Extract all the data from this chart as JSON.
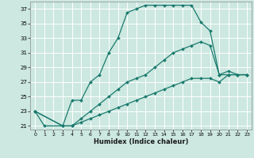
{
  "xlabel": "Humidex (Indice chaleur)",
  "background_color": "#cce8e0",
  "grid_color": "#ffffff",
  "line_color": "#1a7a6e",
  "xlim": [
    -0.5,
    23.5
  ],
  "ylim": [
    20.5,
    38.0
  ],
  "yticks": [
    21,
    23,
    25,
    27,
    29,
    31,
    33,
    35,
    37
  ],
  "xticks": [
    0,
    1,
    2,
    3,
    4,
    5,
    6,
    7,
    8,
    9,
    10,
    11,
    12,
    13,
    14,
    15,
    16,
    17,
    18,
    19,
    20,
    21,
    22,
    23
  ],
  "line1_x": [
    0,
    1,
    3,
    4,
    5,
    6,
    7,
    8,
    9,
    10,
    11,
    12,
    13,
    14,
    15,
    16,
    17,
    18,
    19,
    20,
    21,
    22,
    23
  ],
  "line1_y": [
    23,
    21,
    21,
    24.5,
    24.5,
    27,
    28,
    31,
    33,
    36.5,
    37,
    37.5,
    37.5,
    37.5,
    37.5,
    37.5,
    37.5,
    35.2,
    34,
    28,
    28,
    28,
    28
  ],
  "line2_x": [
    0,
    3,
    4,
    5,
    6,
    7,
    8,
    9,
    10,
    11,
    12,
    13,
    14,
    15,
    16,
    17,
    18,
    19,
    20,
    21,
    22,
    23
  ],
  "line2_y": [
    23,
    21,
    21,
    22,
    23,
    24,
    25,
    26,
    27,
    27.5,
    28,
    29,
    30,
    31,
    31.5,
    32,
    32.5,
    32,
    28,
    28.5,
    28,
    28
  ],
  "line3_x": [
    0,
    3,
    4,
    5,
    6,
    7,
    8,
    9,
    10,
    11,
    12,
    13,
    14,
    15,
    16,
    17,
    18,
    19,
    20,
    21,
    22,
    23
  ],
  "line3_y": [
    23,
    21,
    21,
    21.5,
    22,
    22.5,
    23,
    23.5,
    24,
    24.5,
    25,
    25.5,
    26,
    26.5,
    27,
    27.5,
    27.5,
    27.5,
    27,
    28,
    28,
    28
  ]
}
